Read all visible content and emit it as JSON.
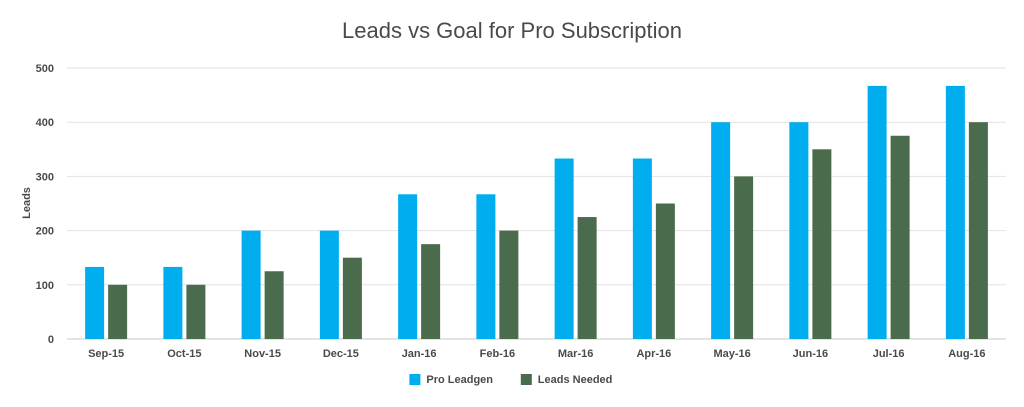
{
  "chart_data": {
    "type": "bar",
    "title": "Leads vs Goal for Pro Subscription",
    "xlabel": "",
    "ylabel": "Leads",
    "ylim": [
      0,
      500
    ],
    "yticks": [
      0,
      100,
      200,
      300,
      400,
      500
    ],
    "grid": true,
    "legend_position": "bottom-center",
    "categories": [
      "Sep-15",
      "Oct-15",
      "Nov-15",
      "Dec-15",
      "Jan-16",
      "Feb-16",
      "Mar-16",
      "Apr-16",
      "May-16",
      "Jun-16",
      "Jul-16",
      "Aug-16"
    ],
    "series": [
      {
        "name": "Pro Leadgen",
        "color": "#00aeef",
        "values": [
          133,
          133,
          200,
          200,
          267,
          267,
          333,
          333,
          400,
          400,
          467,
          467
        ]
      },
      {
        "name": "Leads Needed",
        "color": "#4a6b4c",
        "values": [
          100,
          100,
          125,
          150,
          175,
          200,
          225,
          250,
          300,
          350,
          375,
          400
        ]
      }
    ]
  }
}
